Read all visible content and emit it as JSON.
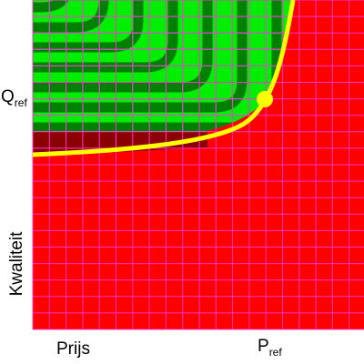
{
  "labels": {
    "q_ref": {
      "main": "Q",
      "sub": "ref"
    },
    "p_ref": {
      "main": "P",
      "sub": "ref"
    },
    "y_axis": "Kwaliteit",
    "x_axis": "Prijs"
  }
}
